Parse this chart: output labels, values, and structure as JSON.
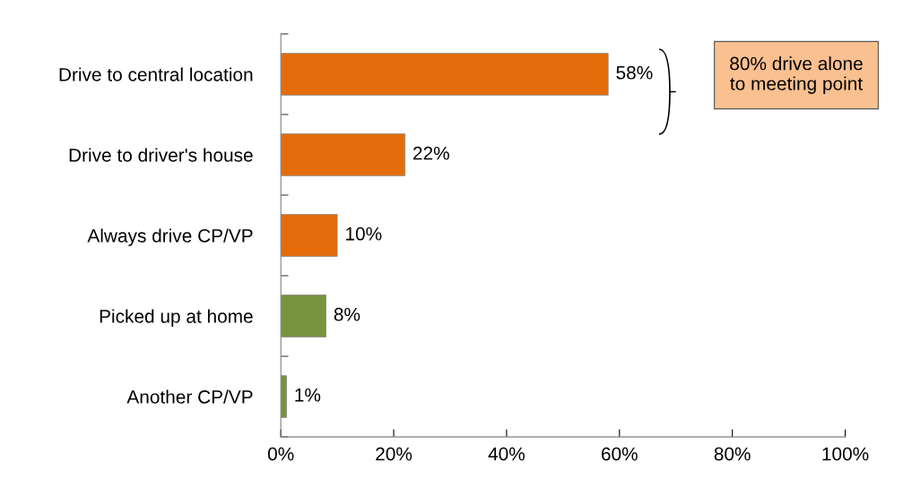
{
  "chart_data": {
    "type": "bar",
    "orientation": "horizontal",
    "categories": [
      "Drive to central location",
      "Drive to driver's house",
      "Always drive CP/VP",
      "Picked up at home",
      "Another CP/VP"
    ],
    "values": [
      58,
      22,
      10,
      8,
      1
    ],
    "colors": [
      "#e46c0a",
      "#e46c0a",
      "#e46c0a",
      "#77933c",
      "#77933c"
    ],
    "value_labels": [
      "58%",
      "22%",
      "10%",
      "8%",
      "1%"
    ],
    "xlim": [
      0,
      100
    ],
    "xticks": [
      {
        "value": 0,
        "label": "0%"
      },
      {
        "value": 20,
        "label": "20%"
      },
      {
        "value": 40,
        "label": "40%"
      },
      {
        "value": 60,
        "label": "60%"
      },
      {
        "value": 80,
        "label": "80%"
      },
      {
        "value": 100,
        "label": "100%"
      }
    ],
    "annotations": [
      "80% drive alone\nto meeting point"
    ],
    "grid": false,
    "legend": false
  }
}
